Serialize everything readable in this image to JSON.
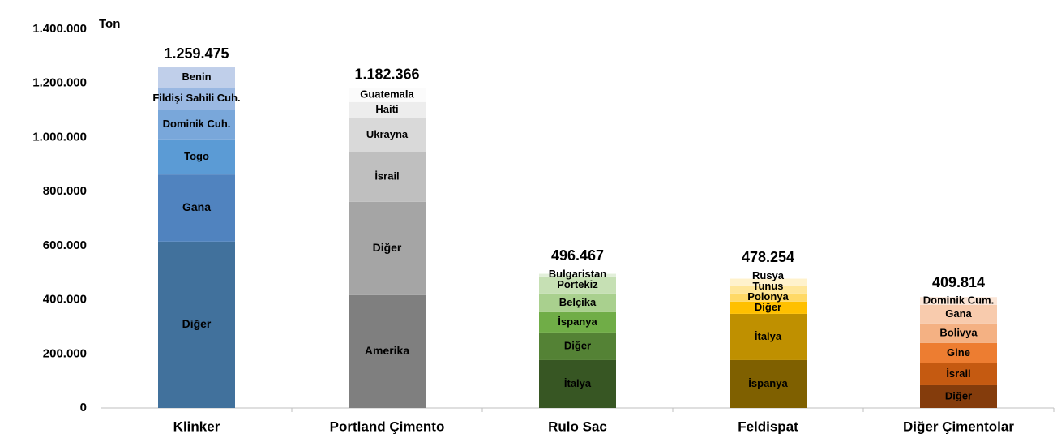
{
  "chart_data": {
    "type": "stacked_bar",
    "y_label": "Ton",
    "ylim": [
      0,
      1400000
    ],
    "yticks": [
      0,
      {
        "value": 200000,
        "label": "200.000"
      },
      {
        "value": 400000,
        "label": "400.000"
      },
      {
        "value": 600000,
        "label": "600.000"
      },
      {
        "value": 800000,
        "label": "800.000"
      },
      {
        "value": 1000000,
        "label": "1.000.000"
      },
      {
        "value": 1200000,
        "label": "1.200.000"
      },
      {
        "value": 1400000,
        "label": "1.400.000"
      }
    ],
    "grid": false,
    "categories": [
      "Klinker",
      "Portland Çimento",
      "Rulo Sac",
      "Feldispat",
      "Diğer Çimentolar"
    ],
    "totals": [
      1259475,
      1182366,
      496467,
      478254,
      409814
    ],
    "total_labels": [
      "1.259.475",
      "1.182.366",
      "496.467",
      "478.254",
      "409.814"
    ],
    "segments": [
      [
        {
          "name": "Diğer",
          "value": 615000,
          "color": "#41719c"
        },
        {
          "name": "Gana",
          "value": 248000,
          "color": "#5083bf"
        },
        {
          "name": "Togo",
          "value": 130000,
          "color": "#5b9bd5"
        },
        {
          "name": "Dominik Cuh.",
          "value": 110000,
          "color": "#79a7da"
        },
        {
          "name": "Fildişi Sahili Cuh.",
          "value": 80000,
          "color": "#9ab8e2"
        },
        {
          "name": "Benin",
          "value": 76000,
          "color": "#c0cfea"
        }
      ],
      [
        {
          "name": "Amerika",
          "value": 417000,
          "color": "#7f7f7f"
        },
        {
          "name": "Diğer",
          "value": 345000,
          "color": "#a5a5a5"
        },
        {
          "name": "İsrail",
          "value": 183000,
          "color": "#bfbfbf"
        },
        {
          "name": "Ukrayna",
          "value": 126000,
          "color": "#d9d9d9"
        },
        {
          "name": "Haiti",
          "value": 60000,
          "color": "#ededed"
        },
        {
          "name": "Guatemala",
          "value": 51000,
          "color": "#fbfbfb"
        }
      ],
      [
        {
          "name": "İtalya",
          "value": 177000,
          "color": "#375623"
        },
        {
          "name": "Diğer",
          "value": 102000,
          "color": "#548235"
        },
        {
          "name": "İspanya",
          "value": 75000,
          "color": "#70ad47"
        },
        {
          "name": "Belçika",
          "value": 69000,
          "color": "#a9d08e"
        },
        {
          "name": "Portekiz",
          "value": 63000,
          "color": "#c6e0b4"
        },
        {
          "name": "Bulgaristan",
          "value": 10000,
          "color": "#e2efda"
        }
      ],
      [
        {
          "name": "İspanya",
          "value": 177000,
          "color": "#7f6000"
        },
        {
          "name": "İtalya",
          "value": 171000,
          "color": "#bf9000"
        },
        {
          "name": "Diğer",
          "value": 45000,
          "color": "#ffc000"
        },
        {
          "name": "Polonya",
          "value": 30000,
          "color": "#ffd966"
        },
        {
          "name": "Tunus",
          "value": 30000,
          "color": "#ffe699"
        },
        {
          "name": "Rusya",
          "value": 25000,
          "color": "#fff2cc"
        }
      ],
      [
        {
          "name": "Diğer",
          "value": 84000,
          "color": "#843c0c"
        },
        {
          "name": "İsrail",
          "value": 81000,
          "color": "#c55a11"
        },
        {
          "name": "Gine",
          "value": 75000,
          "color": "#ed7d31"
        },
        {
          "name": "Bolivya",
          "value": 72000,
          "color": "#f4b183"
        },
        {
          "name": "Gana",
          "value": 69000,
          "color": "#f8cbad"
        },
        {
          "name": "Dominik Cum.",
          "value": 29000,
          "color": "#fbe5d6"
        }
      ]
    ]
  }
}
